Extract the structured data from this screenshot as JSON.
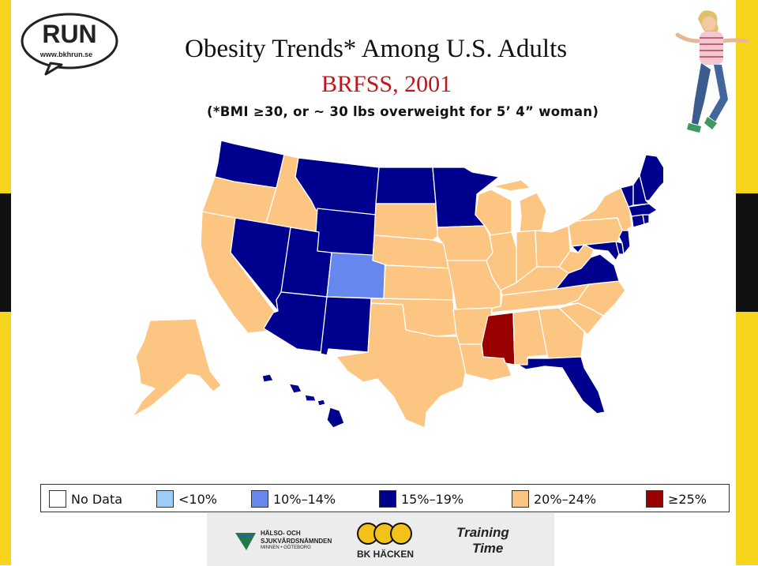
{
  "header": {
    "title": "Obesity Trends* Among U.S. Adults",
    "subtitle": "BRFSS, 2001",
    "note": "(*BMI ≥30, or ~ 30 lbs overweight for 5’ 4” woman)"
  },
  "logo": {
    "word": "RUN",
    "url": "www.bkhrun.se"
  },
  "colors": {
    "no_data": "#ffffff",
    "lt10": "#9ccdf7",
    "c10_14": "#6688ee",
    "c15_19": "#00008f",
    "c20_24": "#fcc682",
    "ge25": "#990000",
    "stripe_yellow": "#f7d51d",
    "title_red": "#c0161b"
  },
  "legend": [
    {
      "key": "no_data",
      "label": "No Data"
    },
    {
      "key": "lt10",
      "label": "<10%"
    },
    {
      "key": "c10_14",
      "label": "10%–14%"
    },
    {
      "key": "c15_19",
      "label": "15%–19%"
    },
    {
      "key": "c20_24",
      "label": "20%–24%"
    },
    {
      "key": "ge25",
      "label": "≥25%"
    }
  ],
  "states": {
    "WA": "c15_19",
    "OR": "c20_24",
    "CA": "c20_24",
    "ID": "c20_24",
    "NV": "c15_19",
    "MT": "c15_19",
    "WY": "c15_19",
    "UT": "c15_19",
    "AZ": "c15_19",
    "CO": "c10_14",
    "NM": "c15_19",
    "ND": "c15_19",
    "SD": "c20_24",
    "NE": "c20_24",
    "KS": "c20_24",
    "OK": "c20_24",
    "TX": "c20_24",
    "MN": "c15_19",
    "IA": "c20_24",
    "MO": "c20_24",
    "AR": "c20_24",
    "LA": "c20_24",
    "WI": "c20_24",
    "IL": "c20_24",
    "MI": "c20_24",
    "IN": "c20_24",
    "OH": "c20_24",
    "KY": "c20_24",
    "TN": "c20_24",
    "MS": "ge25",
    "AL": "c20_24",
    "GA": "c20_24",
    "FL": "c15_19",
    "SC": "c20_24",
    "NC": "c20_24",
    "VA": "c15_19",
    "WV": "c20_24",
    "PA": "c20_24",
    "NY": "c20_24",
    "MD": "c15_19",
    "DE": "c15_19",
    "NJ": "c15_19",
    "CT": "c15_19",
    "RI": "c15_19",
    "MA": "c15_19",
    "VT": "c15_19",
    "NH": "c15_19",
    "ME": "c15_19",
    "AK": "c20_24",
    "HI": "c15_19"
  },
  "sponsors": {
    "org_line1": "HÄLSO- OCH",
    "org_line2": "SJUKVÅRDSNÄMNDEN",
    "org_line3": "MINNEN • GÖTEBORG",
    "club": "BK HÄCKEN",
    "training_line1": "Training",
    "training_line2": "Time"
  }
}
